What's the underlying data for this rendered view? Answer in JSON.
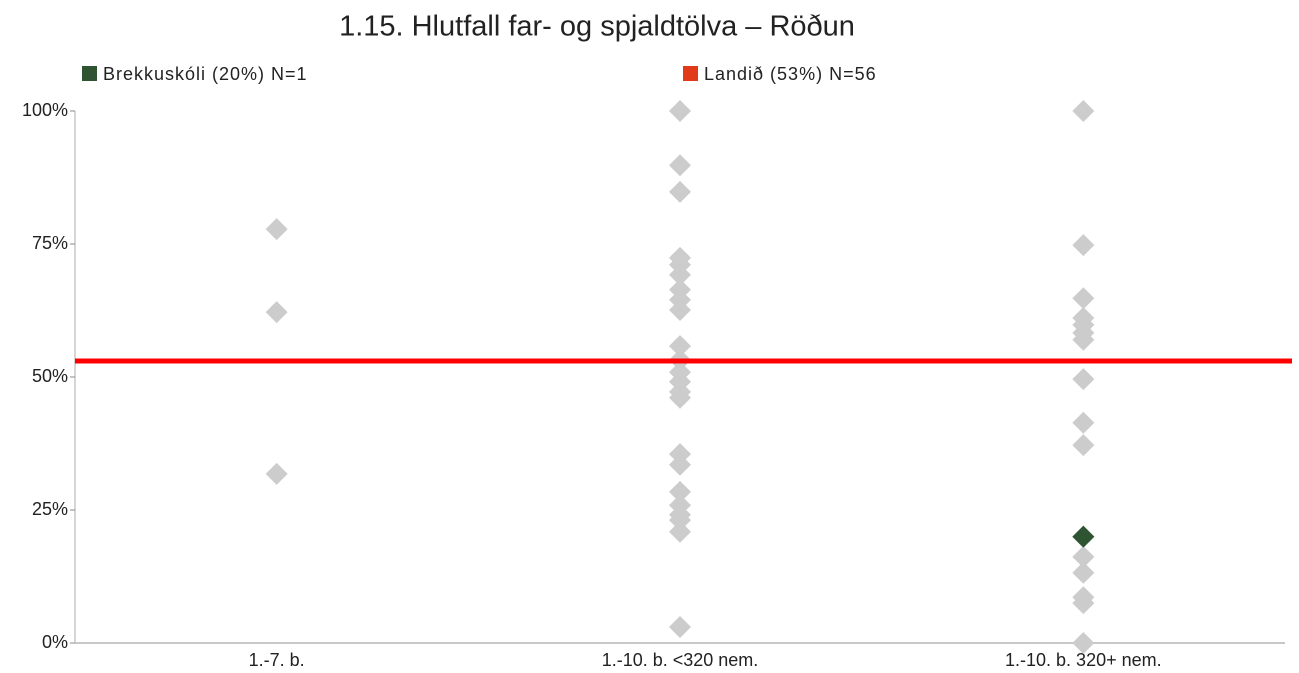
{
  "chart_data": {
    "type": "strip",
    "title": "1.15. Hlutfall far- og spjaldtölva – Röðun",
    "categories": [
      "1.-7. b.",
      "1.-10. b. <320 nem.",
      "1.-10. b. 320+ nem."
    ],
    "color": "#cccccc",
    "values": [
      [
        77.8,
        62.2,
        31.8
      ],
      [
        100,
        89.8,
        84.8,
        72.4,
        71.1,
        69.2,
        66.4,
        64.5,
        62.6,
        55.8,
        53.2,
        50.9,
        49.1,
        47.2,
        46.1,
        35.5,
        33.5,
        28.4,
        25.9,
        24.1,
        23.1,
        20.9,
        3.0
      ],
      [
        100,
        74.8,
        64.8,
        61.1,
        59.8,
        58.3,
        57.0,
        49.6,
        41.4,
        37.2,
        19.9,
        16.2,
        13.2,
        8.6,
        7.5,
        0
      ]
    ],
    "highlight": {
      "name": "Brekkuskóli (20%) N=1",
      "color": "#2e5431",
      "category": 2,
      "value": 20
    },
    "reference": {
      "name": "Landið (53%) N=56",
      "color": "#e03a1a",
      "line_color": "#ff0000",
      "value": 53
    },
    "ylim": [
      0,
      100
    ],
    "yticks": [
      {
        "value": 0,
        "label": "0%"
      },
      {
        "value": 25,
        "label": "25%"
      },
      {
        "value": 50,
        "label": "50%"
      },
      {
        "value": 75,
        "label": "75%"
      },
      {
        "value": 100,
        "label": "100%"
      }
    ]
  }
}
